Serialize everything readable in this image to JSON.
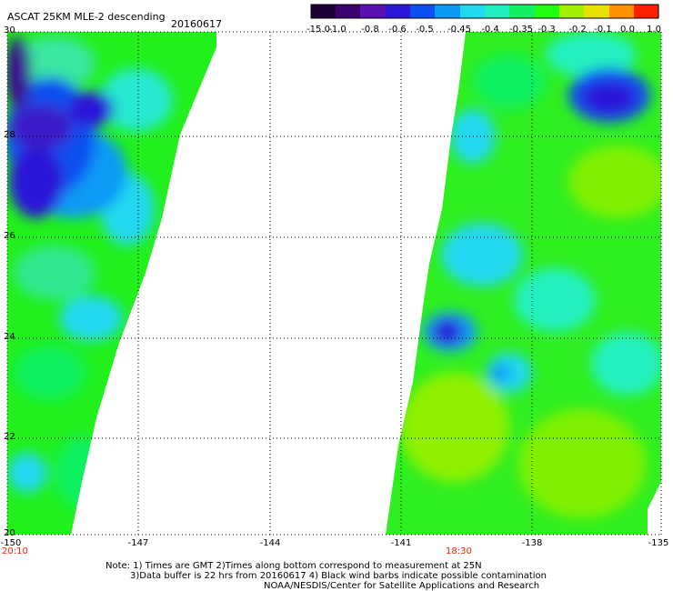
{
  "header": {
    "title": "ASCAT 25KM MLE-2 descending",
    "date": "20160617"
  },
  "colorbar": {
    "labels": [
      "-15.0",
      "-1.0",
      "-0.8",
      "-0.6",
      "-0.5",
      "-0.45",
      "-0.4",
      "-0.35",
      "-0.3",
      "-0.2",
      "-0.1",
      "0.0",
      "1.0"
    ],
    "colors": [
      "#1a0033",
      "#3a0070",
      "#5a10b0",
      "#2b18d8",
      "#0a50f0",
      "#0a9af5",
      "#20d8f0",
      "#20f0c0",
      "#10f060",
      "#20ff10",
      "#a0f000",
      "#e8e000",
      "#ff9000",
      "#ff2000"
    ]
  },
  "map": {
    "lat_labels": [
      "30",
      "28",
      "26",
      "24",
      "22",
      "20"
    ],
    "lon_labels": [
      "-150",
      "-147",
      "-144",
      "-141",
      "-138",
      "-135"
    ],
    "time_labels": [
      "20:10",
      "18:30"
    ],
    "lat_range": [
      20,
      30
    ],
    "lon_range": [
      -150,
      -135
    ]
  },
  "notes": {
    "line1": "Note: 1) Times are GMT 2)Times along bottom correspond to measurement at 25N",
    "line2": "3)Data buffer is 22 hrs from 20160617 4) Black wind barbs indicate possible contamination",
    "line3": "NOAA/NESDIS/Center for Satellite Applications and Research"
  }
}
